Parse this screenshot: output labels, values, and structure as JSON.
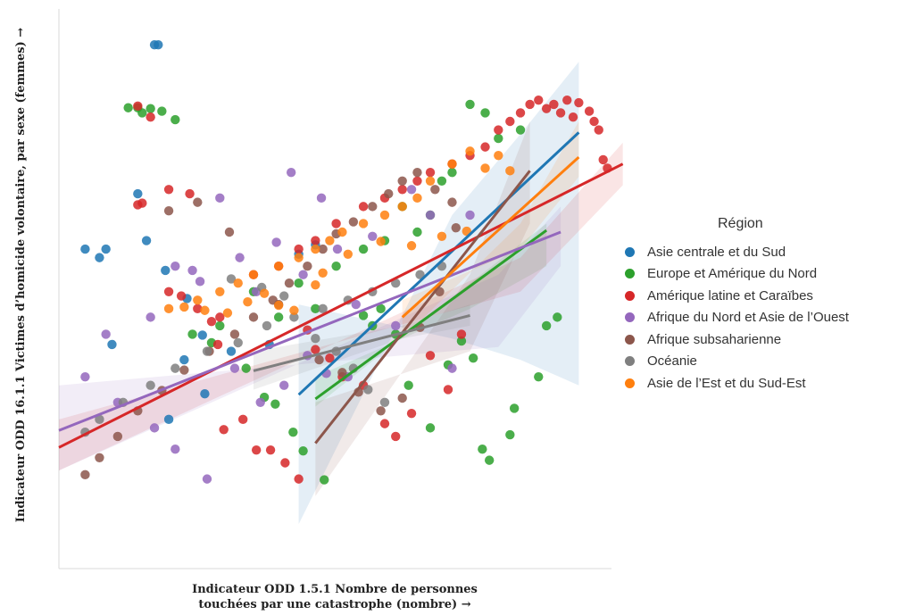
{
  "chart_data": {
    "type": "scatter",
    "xlabel": "Indicateur ODD 1.5.1 Nombre de personnes touchées par une catastrophe (nombre) →",
    "ylabel": "Indicateur ODD 16.1.1 Victimes d’homicide volontaire, par sexe (femmes) →",
    "legend_title": "Région",
    "legend_position": "right",
    "grid": false,
    "ticks_shown": false,
    "regression_lines": true,
    "confidence_bands": true,
    "series": [
      {
        "name": "Asie centrale et du Sud",
        "color": "#1f77b4",
        "points": [
          [
            10,
            286
          ],
          [
            12,
            275
          ],
          [
            0.3,
            280
          ],
          [
            0.6,
            280
          ],
          [
            0.5,
            290
          ],
          [
            0.7,
            392
          ],
          [
            1.6,
            40
          ],
          [
            1.7,
            40
          ],
          [
            1.4,
            270
          ],
          [
            1.2,
            215
          ],
          [
            2.5,
            410
          ],
          [
            3.3,
            450
          ],
          [
            4.6,
            400
          ],
          [
            7.2,
            392
          ],
          [
            2.0,
            480
          ],
          [
            1.9,
            305
          ],
          [
            2.6,
            338
          ],
          [
            3.2,
            381
          ]
        ],
        "fit": {
          "x0": 0.1,
          "x1": 1.8,
          "y0": 451,
          "y1": 143
        },
        "band": [
          [
            0.1,
            345
          ],
          [
            0.5,
            385
          ],
          [
            1.0,
            410
          ],
          [
            1.8,
            440
          ],
          [
            1.8,
            60
          ],
          [
            1.0,
            145
          ],
          [
            0.5,
            240
          ],
          [
            0.1,
            603
          ]
        ]
      },
      {
        "name": "Europe et Amérique du Nord",
        "color": "#2ca02c",
        "points": [
          [
            4,
            370
          ],
          [
            6,
            330
          ],
          [
            8,
            360
          ],
          [
            10,
            320
          ],
          [
            12,
            350
          ],
          [
            15,
            300
          ],
          [
            20,
            280
          ],
          [
            25,
            270
          ],
          [
            28,
            380
          ],
          [
            30,
            230
          ],
          [
            35,
            260
          ],
          [
            40,
            240
          ],
          [
            45,
            200
          ],
          [
            50,
            190
          ],
          [
            60,
            110
          ],
          [
            70,
            120
          ],
          [
            80,
            150
          ],
          [
            100,
            140
          ],
          [
            1.0,
            114
          ],
          [
            1.2,
            114
          ],
          [
            1.3,
            120
          ],
          [
            1.5,
            115
          ],
          [
            1.8,
            118
          ],
          [
            2.2,
            128
          ],
          [
            2.8,
            380
          ],
          [
            3.6,
            390
          ],
          [
            5.5,
            420
          ],
          [
            6.8,
            454
          ],
          [
            7.7,
            462
          ],
          [
            9.4,
            495
          ],
          [
            10.5,
            517
          ],
          [
            13.2,
            551
          ],
          [
            20,
            358
          ],
          [
            22,
            370
          ],
          [
            24,
            350
          ],
          [
            32,
            440
          ],
          [
            40,
            490
          ],
          [
            48,
            416
          ],
          [
            55,
            388
          ],
          [
            62,
            408
          ],
          [
            68,
            515
          ],
          [
            73,
            528
          ],
          [
            90,
            498
          ],
          [
            94,
            467
          ],
          [
            120,
            430
          ],
          [
            130,
            370
          ],
          [
            145,
            360
          ]
        ],
        "fit": {
          "x0": 0.12,
          "x1": 1.3,
          "y0": 456,
          "y1": 258
        },
        "band": [
          [
            0.12,
            430
          ],
          [
            0.6,
            350
          ],
          [
            1.3,
            300
          ],
          [
            1.3,
            250
          ],
          [
            0.6,
            320
          ],
          [
            0.12,
            465
          ]
        ]
      },
      {
        "name": "Amérique latine et Caraïbes",
        "color": "#d62728",
        "points": [
          [
            2,
            330
          ],
          [
            3,
            350
          ],
          [
            4,
            360
          ],
          [
            6,
            310
          ],
          [
            8,
            300
          ],
          [
            10,
            280
          ],
          [
            12,
            270
          ],
          [
            15,
            250
          ],
          [
            20,
            230
          ],
          [
            25,
            220
          ],
          [
            30,
            210
          ],
          [
            35,
            200
          ],
          [
            40,
            190
          ],
          [
            50,
            180
          ],
          [
            60,
            170
          ],
          [
            70,
            160
          ],
          [
            80,
            140
          ],
          [
            90,
            130
          ],
          [
            100,
            120
          ],
          [
            110,
            110
          ],
          [
            120,
            105
          ],
          [
            130,
            115
          ],
          [
            140,
            110
          ],
          [
            150,
            120
          ],
          [
            160,
            105
          ],
          [
            170,
            125
          ],
          [
            180,
            108
          ],
          [
            200,
            118
          ],
          [
            210,
            130
          ],
          [
            220,
            140
          ],
          [
            230,
            175
          ],
          [
            240,
            185
          ],
          [
            1.2,
            112
          ],
          [
            1.5,
            125
          ],
          [
            1.3,
            226
          ],
          [
            1.2,
            228
          ],
          [
            2.0,
            210
          ],
          [
            2.7,
            215
          ],
          [
            2.4,
            335
          ],
          [
            3.6,
            365
          ],
          [
            3.9,
            392
          ],
          [
            4.2,
            492
          ],
          [
            5.3,
            480
          ],
          [
            6.2,
            516
          ],
          [
            7.3,
            516
          ],
          [
            8.6,
            531
          ],
          [
            10,
            550
          ],
          [
            11,
            375
          ],
          [
            12,
            398
          ],
          [
            14,
            408
          ],
          [
            16,
            430
          ],
          [
            20,
            440
          ],
          [
            25,
            485
          ],
          [
            28,
            500
          ],
          [
            33,
            473
          ],
          [
            40,
            405
          ],
          [
            48,
            445
          ],
          [
            55,
            380
          ]
        ],
        "fit": {
          "x0": 0,
          "x1": 2.8,
          "y0": 513,
          "y1": 180
        },
        "band": [
          [
            0,
            480
          ],
          [
            1.0,
            330
          ],
          [
            2.8,
            205
          ],
          [
            2.8,
            155
          ],
          [
            1.0,
            290
          ],
          [
            0,
            540
          ]
        ]
      },
      {
        "name": "Afrique du Nord et Asie de l’Ouest",
        "color": "#9467bd",
        "points": [
          [
            0.6,
            380
          ],
          [
            1.5,
            360
          ],
          [
            2.2,
            300
          ],
          [
            2.8,
            305
          ],
          [
            3.1,
            318
          ],
          [
            4.0,
            220
          ],
          [
            5.1,
            290
          ],
          [
            6.2,
            330
          ],
          [
            7.8,
            272
          ],
          [
            9.2,
            190
          ],
          [
            10.5,
            310
          ],
          [
            12.8,
            220
          ],
          [
            15.2,
            280
          ],
          [
            18.5,
            345
          ],
          [
            22,
            265
          ],
          [
            28,
            370
          ],
          [
            33,
            210
          ],
          [
            40,
            240
          ],
          [
            50,
            420
          ],
          [
            60,
            240
          ],
          [
            0.3,
            430
          ],
          [
            0.8,
            460
          ],
          [
            1.6,
            490
          ],
          [
            2.2,
            515
          ],
          [
            3.4,
            550
          ],
          [
            4.8,
            420
          ],
          [
            6.5,
            460
          ],
          [
            8.5,
            440
          ],
          [
            11,
            405
          ],
          [
            13.5,
            426
          ],
          [
            17,
            430
          ]
        ],
        "fit": {
          "x0": 0,
          "x1": 1.5,
          "y0": 493,
          "y1": 260
        },
        "band": [
          [
            0,
            440
          ],
          [
            0.8,
            395
          ],
          [
            1.5,
            300
          ],
          [
            1.5,
            230
          ],
          [
            0.8,
            310
          ],
          [
            0,
            540
          ]
        ]
      },
      {
        "name": "Afrique subsaharienne",
        "color": "#8c564b",
        "points": [
          [
            0.3,
            545
          ],
          [
            0.5,
            525
          ],
          [
            0.8,
            500
          ],
          [
            1.2,
            470
          ],
          [
            1.8,
            446
          ],
          [
            2.5,
            422
          ],
          [
            3.5,
            400
          ],
          [
            4.8,
            380
          ],
          [
            6.0,
            360
          ],
          [
            7.5,
            340
          ],
          [
            9.0,
            320
          ],
          [
            11,
            300
          ],
          [
            13,
            280
          ],
          [
            15,
            262
          ],
          [
            18,
            248
          ],
          [
            22,
            230
          ],
          [
            26,
            215
          ],
          [
            30,
            200
          ],
          [
            35,
            190
          ],
          [
            42,
            210
          ],
          [
            50,
            225
          ],
          [
            2.0,
            235
          ],
          [
            3.0,
            225
          ],
          [
            4.5,
            260
          ],
          [
            8.0,
            345
          ],
          [
            12.5,
            410
          ],
          [
            16,
            425
          ],
          [
            19,
            448
          ],
          [
            24,
            470
          ],
          [
            30,
            455
          ],
          [
            36,
            372
          ],
          [
            44,
            330
          ],
          [
            52,
            255
          ]
        ],
        "fit": {
          "x0": 0.12,
          "x1": 1.1,
          "y0": 508,
          "y1": 188
        },
        "band": [
          [
            0.12,
            460
          ],
          [
            0.6,
            400
          ],
          [
            1.1,
            250
          ],
          [
            1.1,
            130
          ],
          [
            0.6,
            310
          ],
          [
            0.12,
            570
          ]
        ]
      },
      {
        "name": "Océanie",
        "color": "#7f7f7f",
        "points": [
          [
            0.3,
            495
          ],
          [
            0.5,
            480
          ],
          [
            0.9,
            460
          ],
          [
            1.5,
            440
          ],
          [
            2.2,
            420
          ],
          [
            3.4,
            400
          ],
          [
            5.0,
            390
          ],
          [
            7.0,
            370
          ],
          [
            9.5,
            360
          ],
          [
            13,
            350
          ],
          [
            17,
            340
          ],
          [
            22,
            330
          ],
          [
            28,
            320
          ],
          [
            36,
            310
          ],
          [
            45,
            300
          ],
          [
            4.6,
            315
          ],
          [
            6.6,
            325
          ],
          [
            8.5,
            335
          ],
          [
            12,
            385
          ],
          [
            15,
            400
          ],
          [
            18,
            420
          ],
          [
            21,
            445
          ],
          [
            25,
            460
          ]
        ],
        "fit": {
          "x0": 0.06,
          "x1": 0.6,
          "y0": 423,
          "y1": 358
        },
        "band": [
          [
            0.06,
            400
          ],
          [
            0.3,
            370
          ],
          [
            0.6,
            345
          ],
          [
            0.6,
            370
          ],
          [
            0.3,
            385
          ],
          [
            0.06,
            445
          ]
        ]
      },
      {
        "name": "Asie de l’Est et du Sud-Est",
        "color": "#ff7f0e",
        "points": [
          [
            2,
            350
          ],
          [
            3,
            340
          ],
          [
            4,
            330
          ],
          [
            5,
            320
          ],
          [
            6,
            310
          ],
          [
            8,
            300
          ],
          [
            10,
            290
          ],
          [
            12,
            280
          ],
          [
            14,
            270
          ],
          [
            16,
            260
          ],
          [
            20,
            250
          ],
          [
            25,
            240
          ],
          [
            30,
            230
          ],
          [
            35,
            220
          ],
          [
            40,
            200
          ],
          [
            50,
            180
          ],
          [
            60,
            165
          ],
          [
            70,
            185
          ],
          [
            80,
            170
          ],
          [
            90,
            188
          ],
          [
            2.5,
            348
          ],
          [
            3.3,
            352
          ],
          [
            4.4,
            355
          ],
          [
            5.6,
            342
          ],
          [
            6.8,
            332
          ],
          [
            8.0,
            346
          ],
          [
            9.5,
            352
          ],
          [
            12,
            322
          ],
          [
            13,
            308
          ],
          [
            17,
            286
          ],
          [
            24,
            271
          ],
          [
            33,
            276
          ],
          [
            45,
            265
          ],
          [
            58,
            259
          ]
        ],
        "fit": {
          "x0": 0.3,
          "x1": 1.8,
          "y0": 360,
          "y1": 172
        },
        "band": [
          [
            0.3,
            340
          ],
          [
            1.0,
            280
          ],
          [
            1.8,
            195
          ],
          [
            1.8,
            130
          ],
          [
            1.0,
            250
          ],
          [
            0.3,
            385
          ]
        ]
      }
    ]
  }
}
